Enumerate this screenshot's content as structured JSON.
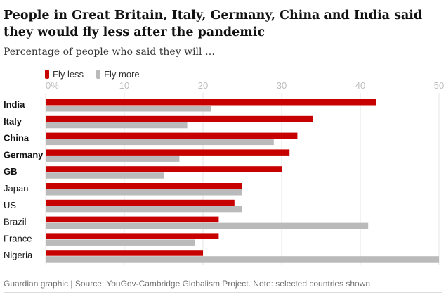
{
  "chart_data": {
    "type": "bar",
    "orientation": "horizontal",
    "title": "People in Great Britain, Italy, Germany, China and India said they would fly less after the pandemic",
    "subtitle": "Percentage of people who said they will …",
    "categories": [
      "India",
      "Italy",
      "China",
      "Germany",
      "GB",
      "Japan",
      "US",
      "Brazil",
      "France",
      "Nigeria"
    ],
    "bold_categories": [
      "India",
      "Italy",
      "China",
      "Germany",
      "GB"
    ],
    "series": [
      {
        "name": "Fly less",
        "color": "#c70000",
        "values": [
          42,
          34,
          32,
          31,
          30,
          25,
          24,
          22,
          22,
          20
        ]
      },
      {
        "name": "Fly more",
        "color": "#bababa",
        "values": [
          21,
          18,
          29,
          17,
          15,
          25,
          25,
          41,
          19,
          50
        ]
      }
    ],
    "xlim": [
      0,
      50
    ],
    "xticks": [
      0,
      10,
      20,
      30,
      40,
      50
    ],
    "xtick_labels": [
      "0%",
      "10",
      "20",
      "30",
      "40",
      "50"
    ],
    "grid": true,
    "legend_position": "top-left",
    "footer": "Guardian graphic | Source: YouGov-Cambridge Globalism Project. Note: selected countries shown"
  }
}
